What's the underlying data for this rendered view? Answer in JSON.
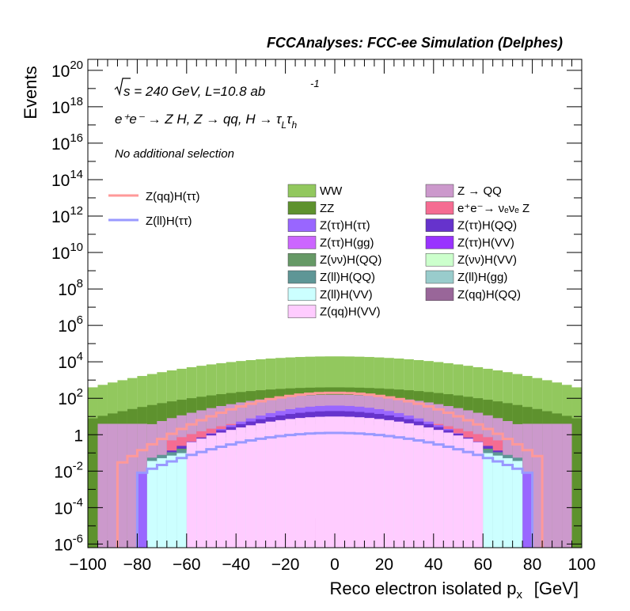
{
  "header": {
    "title": "FCCAnalyses: FCC-ee Simulation (Delphes)"
  },
  "annotations": {
    "sqrt_s": "s = 240 GeV, L=10.8 ab",
    "sqrt_s_exp": "-1",
    "process": "e⁺e⁻ → Z H, Z → qq, H → τ",
    "process_sub1": "L",
    "process_tau2": "τ",
    "process_sub2": "h",
    "selection": "No additional selection"
  },
  "chart_data": {
    "type": "bar",
    "title": "FCCAnalyses: FCC-ee Simulation (Delphes)",
    "xlabel": "Reco electron isolated p",
    "xlabel_sub": "x",
    "xlabel_unit": "[GeV]",
    "ylabel": "Events",
    "xlim": [
      -100,
      100
    ],
    "ylim_log10": [
      -6.2,
      20.6
    ],
    "log_y": true,
    "grid": false,
    "legend_placement": "top",
    "x_ticks": [
      "−100",
      "−80",
      "−60",
      "−40",
      "−20",
      "0",
      "20",
      "40",
      "60",
      "80",
      "100"
    ],
    "y_ticks": [
      {
        "base": "10",
        "exp": "-6",
        "log": -6
      },
      {
        "base": "10",
        "exp": "-4",
        "log": -4
      },
      {
        "base": "10",
        "exp": "-2",
        "log": -2
      },
      {
        "base": "1",
        "exp": "",
        "log": 0
      },
      {
        "base": "10",
        "exp": "2",
        "log": 2
      },
      {
        "base": "10",
        "exp": "4",
        "log": 4
      },
      {
        "base": "10",
        "exp": "6",
        "log": 6
      },
      {
        "base": "10",
        "exp": "8",
        "log": 8
      },
      {
        "base": "10",
        "exp": "10",
        "log": 10
      },
      {
        "base": "10",
        "exp": "12",
        "log": 12
      },
      {
        "base": "10",
        "exp": "14",
        "log": 14
      },
      {
        "base": "10",
        "exp": "16",
        "log": 16
      },
      {
        "base": "10",
        "exp": "18",
        "log": 18
      },
      {
        "base": "10",
        "exp": "20",
        "log": 20
      }
    ],
    "stack": [
      {
        "name": "WW",
        "color": "#92c85e",
        "profile": "WW"
      },
      {
        "name": "ZZ",
        "color": "#5e922e",
        "profile": "ZZ"
      },
      {
        "name": "Z → QQ",
        "color": "#cc99cc",
        "profile": "ZQQ"
      },
      {
        "name": "e⁺e⁻→ νₑνₑ Z",
        "color": "#f56c92",
        "profile": "ENUE"
      },
      {
        "name": "Z(ττ)H(ττ)",
        "color": "#9966ff",
        "profile": "S1"
      },
      {
        "name": "Z(ττ)H(QQ)",
        "color": "#6633cc",
        "profile": "S2"
      },
      {
        "name": "Z(ττ)H(gg)",
        "color": "#cc66ff",
        "profile": "S3"
      },
      {
        "name": "Z(ττ)H(VV)",
        "color": "#9933ff",
        "profile": "S4"
      },
      {
        "name": "Z(νν)H(QQ)",
        "color": "#669966",
        "profile": "S5"
      },
      {
        "name": "Z(νν)H(VV)",
        "color": "#ccffcc",
        "profile": "S6"
      },
      {
        "name": "Z(ll)H(QQ)",
        "color": "#5e9696",
        "profile": "S7"
      },
      {
        "name": "Z(ll)H(gg)",
        "color": "#99cccc",
        "profile": "LLGG"
      },
      {
        "name": "Z(ll)H(VV)",
        "color": "#ccffff",
        "profile": "S8"
      },
      {
        "name": "Z(qq)H(QQ)",
        "color": "#996699",
        "profile": "QQQQ"
      },
      {
        "name": "Z(qq)H(VV)",
        "color": "#ffccff",
        "profile": "S9"
      }
    ],
    "signals": [
      {
        "name": "Z(qq)H(ττ)",
        "color": "#ff9999",
        "peak_log10": 2.3,
        "plateau_log10": -1.7,
        "range": [
          -88,
          84
        ]
      },
      {
        "name": "Z(ll)H(ττ)",
        "color": "#9999ff",
        "peak_log10": 0.1,
        "plateau_log10": -2.2,
        "range": [
          -80,
          80
        ]
      }
    ]
  }
}
